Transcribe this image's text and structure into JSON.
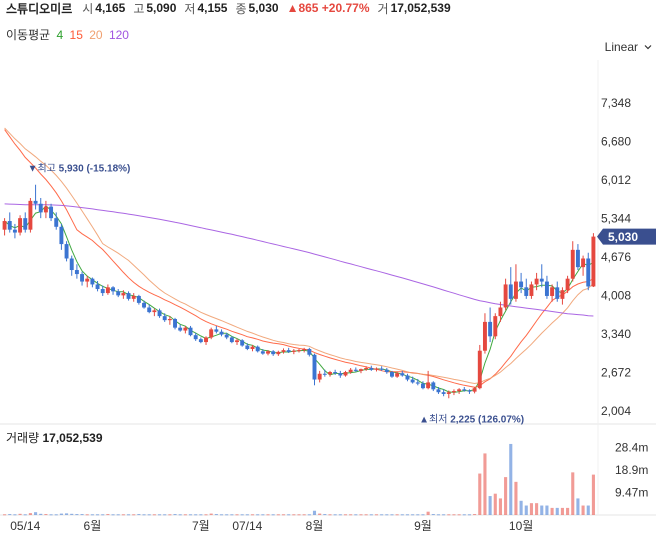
{
  "header": {
    "name": "스튜디오미르",
    "open_label": "시",
    "open": "4,165",
    "high_label": "고",
    "high": "5,090",
    "low_label": "저",
    "low": "4,155",
    "close_label": "종",
    "close": "5,030",
    "change": "▲865 +20.77%",
    "volume_label": "거",
    "volume": "17,052,539"
  },
  "ma_legend": {
    "title": "이동평균",
    "periods": [
      {
        "label": "4",
        "color": "#2ca02c"
      },
      {
        "label": "15",
        "color": "#ff5a36"
      },
      {
        "label": "20",
        "color": "#f0a070"
      },
      {
        "label": "120",
        "color": "#a155e0"
      }
    ]
  },
  "scale_select": {
    "value": "Linear"
  },
  "volume_panel": {
    "label": "거래량",
    "value": "17,052,539"
  },
  "colors": {
    "up": "#e5483f",
    "down": "#3b74d1",
    "price_tag": "#3a4f8f"
  },
  "chart_data": {
    "type": "candlestick",
    "price_axis": {
      "ticks": [
        "7,348",
        "6,680",
        "6,012",
        "5,344",
        "4,676",
        "4,008",
        "3,340",
        "2,672",
        "2,004"
      ],
      "range": [
        2004,
        7348
      ]
    },
    "volume_axis": {
      "ticks": [
        "28.4m",
        "18.9m",
        "9.47m"
      ],
      "range": [
        0,
        38000000
      ]
    },
    "x_ticks": [
      {
        "label": "05/14",
        "index": 4
      },
      {
        "label": "6월",
        "index": 17
      },
      {
        "label": "7월",
        "index": 38
      },
      {
        "label": "07/14",
        "index": 47
      },
      {
        "label": "8월",
        "index": 60
      },
      {
        "label": "9월",
        "index": 81
      },
      {
        "label": "10월",
        "index": 100
      }
    ],
    "last_price_tag": "5,030",
    "annotations": [
      {
        "text": "▼최고",
        "value": "5,930 (-15.18%)",
        "index": 6,
        "price": 5930
      },
      {
        "text": "▲최저",
        "value": "2,225 (126.07%)",
        "index": 88,
        "price": 2225
      }
    ],
    "candles": [
      [
        5150,
        5350,
        5050,
        5300
      ],
      [
        5300,
        5450,
        5100,
        5150
      ],
      [
        5150,
        5250,
        5000,
        5100
      ],
      [
        5100,
        5400,
        5050,
        5350
      ],
      [
        5350,
        5450,
        5100,
        5150
      ],
      [
        5150,
        5700,
        5100,
        5650
      ],
      [
        5650,
        5930,
        5500,
        5600
      ],
      [
        5600,
        5700,
        5350,
        5450
      ],
      [
        5450,
        5650,
        5350,
        5550
      ],
      [
        5550,
        5600,
        5300,
        5350
      ],
      [
        5350,
        5450,
        5150,
        5200
      ],
      [
        5200,
        5250,
        4800,
        4900
      ],
      [
        4900,
        4950,
        4600,
        4650
      ],
      [
        4650,
        4700,
        4350,
        4450
      ],
      [
        4450,
        4550,
        4300,
        4380
      ],
      [
        4380,
        4420,
        4180,
        4250
      ],
      [
        4250,
        4350,
        4150,
        4300
      ],
      [
        4300,
        4320,
        4150,
        4200
      ],
      [
        4200,
        4260,
        4080,
        4120
      ],
      [
        4120,
        4180,
        4000,
        4050
      ],
      [
        4050,
        4200,
        4020,
        4150
      ],
      [
        4150,
        4170,
        4020,
        4080
      ],
      [
        4080,
        4120,
        3980,
        4010
      ],
      [
        4010,
        4100,
        3950,
        4050
      ],
      [
        4050,
        4080,
        3920,
        3950
      ],
      [
        3950,
        4050,
        3900,
        4000
      ],
      [
        4000,
        4020,
        3850,
        3880
      ],
      [
        3880,
        3920,
        3780,
        3800
      ],
      [
        3800,
        3850,
        3700,
        3720
      ],
      [
        3720,
        3780,
        3650,
        3750
      ],
      [
        3750,
        3780,
        3620,
        3650
      ],
      [
        3650,
        3700,
        3550,
        3580
      ],
      [
        3580,
        3650,
        3500,
        3600
      ],
      [
        3600,
        3620,
        3420,
        3450
      ],
      [
        3450,
        3500,
        3380,
        3400
      ],
      [
        3400,
        3480,
        3350,
        3450
      ],
      [
        3450,
        3480,
        3300,
        3320
      ],
      [
        3320,
        3360,
        3220,
        3250
      ],
      [
        3250,
        3280,
        3180,
        3200
      ],
      [
        3200,
        3300,
        3150,
        3280
      ],
      [
        3280,
        3450,
        3250,
        3420
      ],
      [
        3420,
        3480,
        3350,
        3380
      ],
      [
        3380,
        3420,
        3300,
        3330
      ],
      [
        3330,
        3360,
        3250,
        3280
      ],
      [
        3280,
        3300,
        3180,
        3200
      ],
      [
        3200,
        3260,
        3150,
        3230
      ],
      [
        3230,
        3250,
        3120,
        3140
      ],
      [
        3140,
        3180,
        3060,
        3080
      ],
      [
        3080,
        3150,
        3040,
        3120
      ],
      [
        3120,
        3140,
        3020,
        3040
      ],
      [
        3040,
        3080,
        2980,
        3000
      ],
      [
        3000,
        3060,
        2970,
        3040
      ],
      [
        3040,
        3060,
        2960,
        2990
      ],
      [
        2990,
        3050,
        2960,
        3030
      ],
      [
        3030,
        3090,
        3000,
        3060
      ],
      [
        3060,
        3100,
        3010,
        3030
      ],
      [
        3030,
        3080,
        2990,
        3050
      ],
      [
        3050,
        3080,
        3020,
        3060
      ],
      [
        3060,
        3100,
        3020,
        3080
      ],
      [
        3080,
        3100,
        2950,
        2980
      ],
      [
        2980,
        3000,
        2450,
        2550
      ],
      [
        2550,
        2700,
        2500,
        2650
      ],
      [
        2650,
        2720,
        2600,
        2640
      ],
      [
        2640,
        2700,
        2600,
        2680
      ],
      [
        2680,
        2720,
        2630,
        2660
      ],
      [
        2660,
        2700,
        2580,
        2620
      ],
      [
        2620,
        2700,
        2600,
        2680
      ],
      [
        2680,
        2750,
        2650,
        2720
      ],
      [
        2720,
        2760,
        2680,
        2700
      ],
      [
        2700,
        2740,
        2660,
        2730
      ],
      [
        2730,
        2780,
        2700,
        2750
      ],
      [
        2750,
        2790,
        2700,
        2720
      ],
      [
        2720,
        2760,
        2690,
        2740
      ],
      [
        2740,
        2780,
        2700,
        2720
      ],
      [
        2720,
        2750,
        2650,
        2680
      ],
      [
        2680,
        2700,
        2580,
        2600
      ],
      [
        2600,
        2680,
        2580,
        2660
      ],
      [
        2660,
        2700,
        2600,
        2620
      ],
      [
        2620,
        2650,
        2520,
        2550
      ],
      [
        2550,
        2600,
        2480,
        2500
      ],
      [
        2500,
        2560,
        2450,
        2480
      ],
      [
        2480,
        2520,
        2380,
        2400
      ],
      [
        2400,
        2700,
        2380,
        2500
      ],
      [
        2500,
        2520,
        2350,
        2380
      ],
      [
        2380,
        2420,
        2300,
        2330
      ],
      [
        2330,
        2380,
        2260,
        2300
      ],
      [
        2300,
        2360,
        2225,
        2330
      ],
      [
        2330,
        2380,
        2280,
        2350
      ],
      [
        2350,
        2400,
        2300,
        2380
      ],
      [
        2380,
        2420,
        2340,
        2360
      ],
      [
        2360,
        2380,
        2300,
        2340
      ],
      [
        2340,
        2420,
        2310,
        2400
      ],
      [
        2400,
        3150,
        2380,
        3050
      ],
      [
        3050,
        3700,
        3000,
        3550
      ],
      [
        3550,
        3800,
        3200,
        3300
      ],
      [
        3300,
        3700,
        3250,
        3650
      ],
      [
        3650,
        3900,
        3550,
        3800
      ],
      [
        3800,
        4300,
        3750,
        4200
      ],
      [
        4200,
        4500,
        3850,
        3950
      ],
      [
        3950,
        4550,
        3900,
        4250
      ],
      [
        4250,
        4400,
        4050,
        4150
      ],
      [
        4150,
        4300,
        3950,
        4000
      ],
      [
        4000,
        4250,
        3950,
        4200
      ],
      [
        4200,
        4400,
        4100,
        4300
      ],
      [
        4300,
        4550,
        4150,
        4250
      ],
      [
        4250,
        4350,
        3950,
        4000
      ],
      [
        4000,
        4200,
        3900,
        4150
      ],
      [
        4150,
        4250,
        3900,
        3950
      ],
      [
        3950,
        4150,
        3850,
        4100
      ],
      [
        4100,
        4350,
        4050,
        4300
      ],
      [
        4300,
        4950,
        4250,
        4800
      ],
      [
        4800,
        4900,
        4450,
        4500
      ],
      [
        4500,
        4700,
        4350,
        4650
      ],
      [
        4650,
        4750,
        4100,
        4165
      ],
      [
        4165,
        5090,
        4155,
        5030
      ]
    ],
    "volume": [
      0.3,
      0.4,
      0.3,
      0.5,
      0.3,
      0.8,
      1.2,
      0.5,
      0.4,
      0.3,
      0.3,
      0.6,
      0.7,
      0.5,
      0.4,
      0.4,
      0.3,
      0.3,
      0.3,
      0.3,
      0.4,
      0.3,
      0.3,
      0.3,
      0.3,
      0.3,
      0.4,
      0.3,
      0.3,
      0.3,
      0.3,
      0.3,
      0.3,
      0.4,
      0.3,
      0.3,
      0.3,
      0.3,
      0.3,
      0.3,
      0.6,
      0.4,
      0.3,
      0.3,
      0.3,
      0.3,
      0.3,
      0.3,
      0.3,
      0.3,
      0.3,
      0.3,
      0.3,
      0.3,
      0.3,
      0.3,
      0.3,
      0.3,
      0.3,
      0.3,
      1.8,
      0.6,
      0.4,
      0.3,
      0.3,
      0.3,
      0.3,
      0.3,
      0.3,
      0.3,
      0.3,
      0.3,
      0.3,
      0.3,
      0.3,
      0.3,
      0.3,
      0.3,
      0.3,
      0.3,
      0.3,
      0.3,
      1.4,
      0.4,
      0.3,
      0.3,
      0.3,
      0.3,
      0.3,
      0.3,
      0.3,
      0.4,
      17.5,
      26.0,
      8.0,
      9.0,
      7.0,
      16.0,
      30.0,
      14.0,
      6.0,
      4.0,
      5.0,
      5.0,
      4.0,
      4.0,
      3.0,
      3.0,
      3.0,
      3.0,
      18.0,
      7.0,
      4.0,
      4.0,
      17.05
    ],
    "moving_averages": [
      "4",
      "15",
      "20",
      "120"
    ]
  }
}
